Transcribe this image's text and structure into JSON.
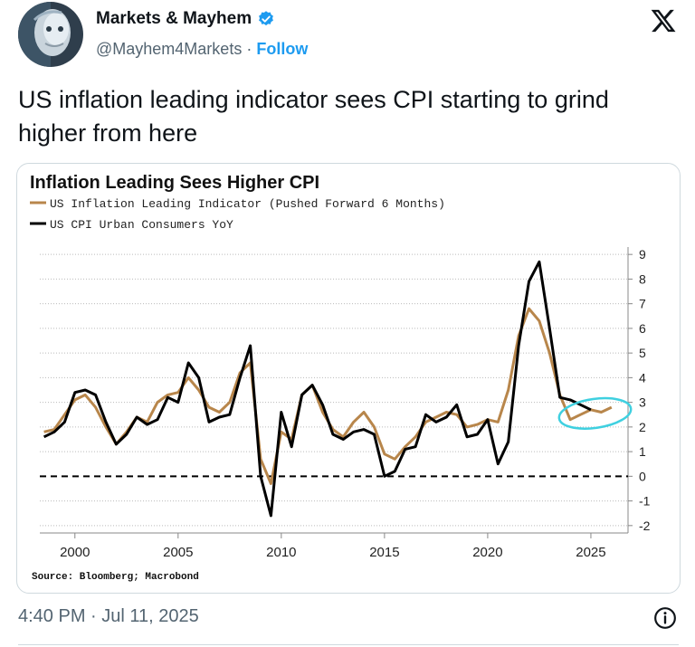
{
  "account": {
    "name": "Markets & Mayhem",
    "handle": "@Mayhem4Markets",
    "separator": "·",
    "follow_label": "Follow"
  },
  "tweet": {
    "text": "US inflation leading indicator sees CPI starting to grind higher from here",
    "timestamp": "4:40 PM · Jul 11, 2025"
  },
  "icons": {
    "avatar": "robot-face-avatar",
    "verified": "verified-badge-icon",
    "logo": "x-logo-icon",
    "info": "info-icon"
  },
  "colors": {
    "verified": "#1d9bf0",
    "follow": "#1d9bf0",
    "leading_series": "#b8864b",
    "cpi_series": "#000000",
    "highlight_ellipse": "#3fd0e0"
  },
  "chart_data": {
    "type": "line",
    "title": "Inflation Leading Sees Higher CPI",
    "source": "Source: Bloomberg; Macrobond",
    "xlim": [
      1998.3,
      2026.8
    ],
    "ylim": [
      -2.3,
      9.3
    ],
    "y_ticks": [
      -2,
      -1,
      0,
      1,
      2,
      3,
      4,
      5,
      6,
      7,
      8,
      9
    ],
    "x_ticks": [
      2000,
      2005,
      2010,
      2015,
      2020,
      2025
    ],
    "y_axis_side": "right",
    "grid": "horizontal dotted",
    "zero_line": "dashed",
    "legend_position": "top-left",
    "series": [
      {
        "name": "US Inflation Leading Indicator (Pushed Forward 6 Months)",
        "color": "#b8864b",
        "x": [
          1998.5,
          1999.0,
          1999.5,
          2000.0,
          2000.5,
          2001.0,
          2001.5,
          2002.0,
          2002.5,
          2003.0,
          2003.5,
          2004.0,
          2004.5,
          2005.0,
          2005.5,
          2006.0,
          2006.5,
          2007.0,
          2007.5,
          2008.0,
          2008.5,
          2009.0,
          2009.5,
          2010.0,
          2010.5,
          2011.0,
          2011.5,
          2012.0,
          2012.5,
          2013.0,
          2013.5,
          2014.0,
          2014.5,
          2015.0,
          2015.5,
          2016.0,
          2016.5,
          2017.0,
          2017.5,
          2018.0,
          2018.5,
          2019.0,
          2019.5,
          2020.0,
          2020.5,
          2021.0,
          2021.5,
          2022.0,
          2022.5,
          2023.0,
          2023.5,
          2024.0,
          2024.5,
          2025.0,
          2025.5,
          2026.0
        ],
        "y": [
          1.8,
          1.9,
          2.5,
          3.1,
          3.3,
          2.8,
          2.0,
          1.3,
          1.8,
          2.4,
          2.2,
          3.0,
          3.3,
          3.4,
          4.0,
          3.5,
          2.8,
          2.6,
          3.0,
          4.2,
          4.6,
          0.7,
          -0.3,
          1.8,
          1.5,
          3.3,
          3.7,
          2.6,
          1.9,
          1.6,
          2.2,
          2.6,
          2.0,
          0.9,
          0.7,
          1.2,
          1.6,
          2.2,
          2.4,
          2.6,
          2.5,
          2.0,
          2.1,
          2.3,
          2.2,
          3.5,
          5.7,
          6.8,
          6.3,
          5.0,
          3.3,
          2.3,
          2.5,
          2.7,
          2.6,
          2.8
        ]
      },
      {
        "name": "US CPI Urban Consumers YoY",
        "color": "#000000",
        "x": [
          1998.5,
          1999.0,
          1999.5,
          2000.0,
          2000.5,
          2001.0,
          2001.5,
          2002.0,
          2002.5,
          2003.0,
          2003.5,
          2004.0,
          2004.5,
          2005.0,
          2005.5,
          2006.0,
          2006.5,
          2007.0,
          2007.5,
          2008.0,
          2008.5,
          2009.0,
          2009.5,
          2010.0,
          2010.5,
          2011.0,
          2011.5,
          2012.0,
          2012.5,
          2013.0,
          2013.5,
          2014.0,
          2014.5,
          2015.0,
          2015.5,
          2016.0,
          2016.5,
          2017.0,
          2017.5,
          2018.0,
          2018.5,
          2019.0,
          2019.5,
          2020.0,
          2020.5,
          2021.0,
          2021.5,
          2022.0,
          2022.5,
          2023.0,
          2023.5,
          2024.0,
          2024.5,
          2025.0
        ],
        "y": [
          1.6,
          1.8,
          2.2,
          3.4,
          3.5,
          3.3,
          2.2,
          1.3,
          1.7,
          2.4,
          2.1,
          2.3,
          3.2,
          3.0,
          4.6,
          4.0,
          2.2,
          2.4,
          2.5,
          4.0,
          5.3,
          0.0,
          -1.6,
          2.6,
          1.2,
          3.3,
          3.7,
          2.9,
          1.7,
          1.5,
          1.8,
          1.9,
          1.7,
          0.0,
          0.2,
          1.1,
          1.2,
          2.5,
          2.2,
          2.4,
          2.9,
          1.6,
          1.7,
          2.3,
          0.5,
          1.4,
          5.3,
          7.9,
          8.7,
          6.0,
          3.2,
          3.1,
          2.9,
          2.7
        ]
      }
    ],
    "annotation": "cyan ellipse around 2024-2025 readings"
  }
}
